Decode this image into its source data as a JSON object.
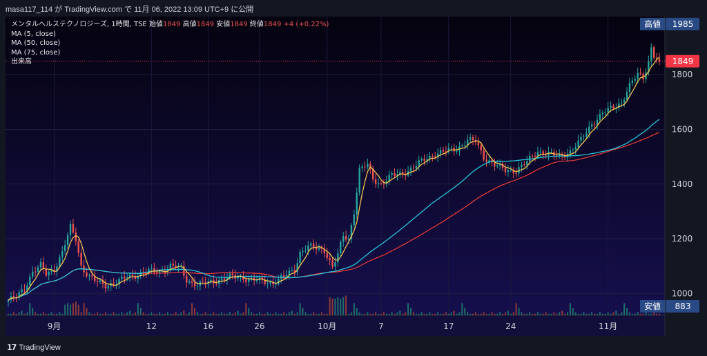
{
  "header": {
    "publish_line": "masa117_114 が TradingView.com で 11月 06, 2022 13:09 UTC+9 に公開"
  },
  "legend": {
    "symbol": "メンタルヘルステクノロジーズ, 1時間, TSE",
    "open_label": "始値",
    "open_value": "1849",
    "high_label": "高値",
    "high_value": "1849",
    "low_label": "安値",
    "low_value": "1849",
    "close_label": "終値",
    "close_value": "1849",
    "change": "+4 (+0.22%)",
    "ma_lines": [
      "MA (5, close)",
      "MA (50, close)",
      "MA (75, close)"
    ],
    "volume_label": "出来高"
  },
  "footer": {
    "brand": "TradingView"
  },
  "colors": {
    "background": "#070415",
    "panel": "#131722",
    "up": "#26a69a",
    "down": "#ef5350",
    "ma5": "#f5c451",
    "ma50": "#26c6da",
    "ma75": "#e53935",
    "tag_blue": "#2a4a85",
    "tag_red": "#f23645"
  },
  "chart_data": {
    "type": "candlestick",
    "currency": "JPY",
    "ylim": [
      920,
      2010
    ],
    "y_ticks": [
      1000,
      1200,
      1400,
      1600,
      1800
    ],
    "x_labels": [
      "9月",
      "12",
      "16",
      "26",
      "10月",
      "7",
      "17",
      "24",
      "11月"
    ],
    "price_tags": {
      "high_label": "高値",
      "high": 1985,
      "current": 1849,
      "low_label": "安値",
      "low": 883
    },
    "close_path": [
      [
        0,
        975
      ],
      [
        3,
        985
      ],
      [
        6,
        1020
      ],
      [
        9,
        1080
      ],
      [
        12,
        1100
      ],
      [
        14,
        1070
      ],
      [
        17,
        1090
      ],
      [
        20,
        1150
      ],
      [
        23,
        1240
      ],
      [
        25,
        1200
      ],
      [
        27,
        1100
      ],
      [
        30,
        1060
      ],
      [
        33,
        1040
      ],
      [
        36,
        1030
      ],
      [
        40,
        1040
      ],
      [
        44,
        1060
      ],
      [
        48,
        1070
      ],
      [
        52,
        1080
      ],
      [
        56,
        1080
      ],
      [
        60,
        1100
      ],
      [
        64,
        1090
      ],
      [
        66,
        1050
      ],
      [
        70,
        1030
      ],
      [
        74,
        1040
      ],
      [
        78,
        1050
      ],
      [
        82,
        1060
      ],
      [
        86,
        1060
      ],
      [
        90,
        1050
      ],
      [
        94,
        1045
      ],
      [
        98,
        1040
      ],
      [
        102,
        1060
      ],
      [
        106,
        1090
      ],
      [
        108,
        1150
      ],
      [
        111,
        1170
      ],
      [
        114,
        1165
      ],
      [
        117,
        1160
      ],
      [
        120,
        1095
      ],
      [
        122,
        1140
      ],
      [
        124,
        1210
      ],
      [
        126,
        1200
      ],
      [
        128,
        1300
      ],
      [
        130,
        1450
      ],
      [
        133,
        1470
      ],
      [
        135,
        1420
      ],
      [
        138,
        1400
      ],
      [
        142,
        1430
      ],
      [
        146,
        1440
      ],
      [
        150,
        1460
      ],
      [
        154,
        1490
      ],
      [
        158,
        1510
      ],
      [
        162,
        1520
      ],
      [
        166,
        1530
      ],
      [
        170,
        1560
      ],
      [
        173,
        1555
      ],
      [
        176,
        1500
      ],
      [
        180,
        1470
      ],
      [
        184,
        1450
      ],
      [
        188,
        1450
      ],
      [
        192,
        1480
      ],
      [
        196,
        1520
      ],
      [
        200,
        1510
      ],
      [
        204,
        1500
      ],
      [
        208,
        1520
      ],
      [
        212,
        1560
      ],
      [
        216,
        1620
      ],
      [
        220,
        1660
      ],
      [
        224,
        1680
      ],
      [
        227,
        1700
      ],
      [
        230,
        1760
      ],
      [
        233,
        1800
      ],
      [
        235,
        1790
      ],
      [
        237,
        1850
      ],
      [
        238,
        1900
      ],
      [
        239,
        1870
      ],
      [
        241,
        1849
      ]
    ],
    "volume_pattern": [
      1,
      1,
      2,
      1,
      2,
      3,
      1,
      2,
      8,
      5,
      2,
      1,
      1,
      2,
      1,
      1,
      2,
      1,
      1,
      2
    ]
  }
}
